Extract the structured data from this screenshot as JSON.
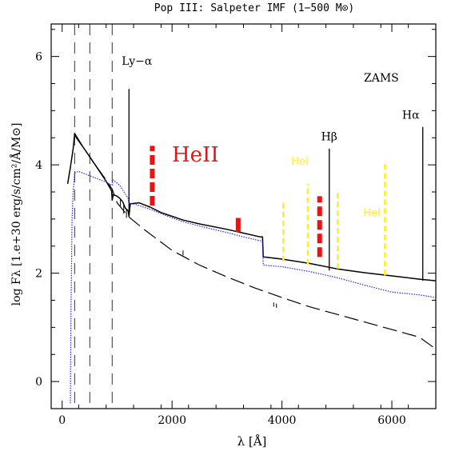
{
  "chart_data": {
    "type": "line",
    "title": "Pop III: Salpeter IMF (1−500 M⊙)",
    "xlabel": "λ [Å]",
    "ylabel": "log Fλ [1.e+30 erg/s/cm²/Å/M⊙]",
    "xlim": [
      -200,
      6800
    ],
    "ylim": [
      -0.5,
      6.6
    ],
    "x_ticks": [
      0,
      2000,
      4000,
      6000
    ],
    "y_ticks": [
      0,
      2,
      4,
      6
    ],
    "annotation_zams": "ZAMS",
    "colors": {
      "solid": "#000000",
      "dashed": "#000000",
      "dotted": "#1a1aff",
      "heii": "#ee1111",
      "hei": "#ffee22",
      "hlines": "#000000"
    },
    "series": [
      {
        "style": "solid",
        "color": "#000000",
        "points": [
          [
            100,
            3.65
          ],
          [
            150,
            3.95
          ],
          [
            200,
            4.3
          ],
          [
            228,
            4.58
          ],
          [
            260,
            4.5
          ],
          [
            400,
            4.3
          ],
          [
            600,
            4.0
          ],
          [
            800,
            3.7
          ],
          [
            900,
            3.52
          ],
          [
            911,
            3.35
          ],
          [
            930,
            3.45
          ],
          [
            1000,
            3.42
          ],
          [
            1050,
            3.38
          ],
          [
            1100,
            3.32
          ],
          [
            1150,
            3.2
          ],
          [
            1200,
            3.15
          ],
          [
            1216,
            3.05
          ],
          [
            1240,
            3.28
          ],
          [
            1400,
            3.3
          ],
          [
            1600,
            3.22
          ],
          [
            1800,
            3.12
          ],
          [
            2000,
            3.05
          ],
          [
            2200,
            2.98
          ],
          [
            2500,
            2.91
          ],
          [
            3000,
            2.81
          ],
          [
            3300,
            2.74
          ],
          [
            3600,
            2.67
          ],
          [
            3646,
            2.67
          ],
          [
            3660,
            2.3
          ],
          [
            4000,
            2.26
          ],
          [
            4500,
            2.18
          ],
          [
            5000,
            2.08
          ],
          [
            5500,
            2.01
          ],
          [
            6000,
            1.95
          ],
          [
            6500,
            1.89
          ],
          [
            6800,
            1.86
          ]
        ]
      },
      {
        "style": "dashed",
        "color": "#000000",
        "points": [
          [
            228,
            4.58
          ],
          [
            400,
            4.3
          ],
          [
            600,
            4.0
          ],
          [
            800,
            3.72
          ],
          [
            911,
            3.55
          ],
          [
            1000,
            3.3
          ],
          [
            1200,
            3.05
          ],
          [
            1500,
            2.8
          ],
          [
            2000,
            2.42
          ],
          [
            2500,
            2.15
          ],
          [
            3000,
            1.93
          ],
          [
            3500,
            1.73
          ],
          [
            4000,
            1.55
          ],
          [
            4500,
            1.38
          ],
          [
            5000,
            1.24
          ],
          [
            5500,
            1.1
          ],
          [
            6000,
            0.96
          ],
          [
            6500,
            0.82
          ],
          [
            6800,
            0.6
          ]
        ]
      },
      {
        "style": "dotted",
        "color": "#1a1aff",
        "points": [
          [
            150,
            -0.4
          ],
          [
            160,
            1.2
          ],
          [
            180,
            3.0
          ],
          [
            200,
            3.5
          ],
          [
            228,
            3.85
          ],
          [
            300,
            3.88
          ],
          [
            500,
            3.8
          ],
          [
            800,
            3.68
          ],
          [
            911,
            3.62
          ],
          [
            930,
            3.72
          ],
          [
            1050,
            3.62
          ],
          [
            1200,
            3.38
          ],
          [
            1216,
            3.3
          ],
          [
            1400,
            3.25
          ],
          [
            1600,
            3.18
          ],
          [
            1800,
            3.1
          ],
          [
            2000,
            3.02
          ],
          [
            2200,
            2.95
          ],
          [
            2500,
            2.87
          ],
          [
            3000,
            2.75
          ],
          [
            3300,
            2.67
          ],
          [
            3600,
            2.6
          ],
          [
            3646,
            2.58
          ],
          [
            3660,
            2.15
          ],
          [
            4000,
            2.12
          ],
          [
            4500,
            2.03
          ],
          [
            5000,
            1.92
          ],
          [
            5500,
            1.78
          ],
          [
            6000,
            1.65
          ],
          [
            6500,
            1.6
          ],
          [
            6800,
            1.55
          ]
        ]
      }
    ],
    "vertical_dashed_lines": [
      228,
      504,
      911
    ],
    "h_lines": [
      {
        "label": "Ly−α",
        "x": 1216,
        "y0": 3.05,
        "y1": 5.4,
        "label_y": 5.85,
        "label_dx": 10
      },
      {
        "label": "Hβ",
        "x": 4861,
        "y0": 2.05,
        "y1": 4.3,
        "label_y": 4.45,
        "label_dx": 0
      },
      {
        "label": "Hα",
        "x": 6563,
        "y0": 1.86,
        "y1": 4.7,
        "label_y": 4.85,
        "label_dx": -15
      }
    ],
    "heii_lines": [
      {
        "x": 1640,
        "y0": 3.25,
        "y1": 4.35,
        "dash": true
      },
      {
        "x": 3203,
        "y0": 2.76,
        "y1": 3.02,
        "dash": false
      },
      {
        "x": 4686,
        "y0": 2.3,
        "y1": 3.42,
        "dash": true
      }
    ],
    "heii_label": "HeII",
    "hei_lines": [
      {
        "x": 4026,
        "y0": 2.22,
        "y1": 3.35
      },
      {
        "x": 4471,
        "y0": 2.16,
        "y1": 3.65
      },
      {
        "x": 5016,
        "y0": 2.08,
        "y1": 3.55
      },
      {
        "x": 5876,
        "y0": 1.96,
        "y1": 4.05
      }
    ],
    "hei_labels": [
      {
        "text": "HeI",
        "x": 4170,
        "y": 4.0
      },
      {
        "text": "HeI",
        "x": 5480,
        "y": 3.05
      }
    ]
  }
}
